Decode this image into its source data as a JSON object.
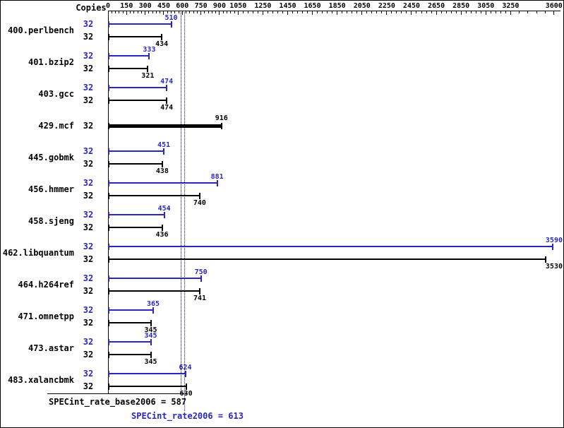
{
  "chart_data": {
    "type": "bar",
    "orientation": "horizontal",
    "copies_header": "Copies",
    "axis": {
      "position": "top",
      "ticks": [
        0,
        150,
        300,
        450,
        600,
        750,
        900,
        1050,
        1250,
        1450,
        1650,
        1850,
        2050,
        2250,
        2450,
        2650,
        2850,
        3050,
        3250,
        3600
      ]
    },
    "series_names": [
      "peak",
      "base"
    ],
    "benchmarks": [
      {
        "name": "400.perlbench",
        "copies": 32,
        "peak": 510,
        "base": 434,
        "single": false
      },
      {
        "name": "401.bzip2",
        "copies": 32,
        "peak": 333,
        "base": 321,
        "single": false
      },
      {
        "name": "403.gcc",
        "copies": 32,
        "peak": 474,
        "base": 474,
        "single": false
      },
      {
        "name": "429.mcf",
        "copies": 32,
        "peak": 916,
        "base": 916,
        "single": true
      },
      {
        "name": "445.gobmk",
        "copies": 32,
        "peak": 451,
        "base": 438,
        "single": false
      },
      {
        "name": "456.hmmer",
        "copies": 32,
        "peak": 881,
        "base": 740,
        "single": false
      },
      {
        "name": "458.sjeng",
        "copies": 32,
        "peak": 454,
        "base": 436,
        "single": false
      },
      {
        "name": "462.libquantum",
        "copies": 32,
        "peak": 3590,
        "base": 3530,
        "single": false
      },
      {
        "name": "464.h264ref",
        "copies": 32,
        "peak": 750,
        "base": 741,
        "single": false
      },
      {
        "name": "471.omnetpp",
        "copies": 32,
        "peak": 365,
        "base": 345,
        "single": false
      },
      {
        "name": "473.astar",
        "copies": 32,
        "peak": 345,
        "base": 345,
        "single": false
      },
      {
        "name": "483.xalancbmk",
        "copies": 32,
        "peak": 624,
        "base": 630,
        "single": false
      }
    ],
    "results": {
      "base_label": "SPECint_rate_base2006 = 587",
      "base_value": 587,
      "peak_label": "SPECint_rate2006 = 613",
      "peak_value": 613
    },
    "colors": {
      "peak": "#2828c0",
      "base": "#000000"
    }
  }
}
